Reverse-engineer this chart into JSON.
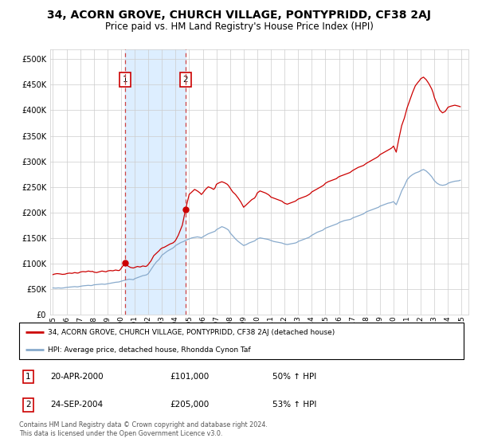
{
  "title": "34, ACORN GROVE, CHURCH VILLAGE, PONTYPRIDD, CF38 2AJ",
  "subtitle": "Price paid vs. HM Land Registry's House Price Index (HPI)",
  "title_fontsize": 10,
  "subtitle_fontsize": 8.5,
  "ylabel_ticks": [
    "£0",
    "£50K",
    "£100K",
    "£150K",
    "£200K",
    "£250K",
    "£300K",
    "£350K",
    "£400K",
    "£450K",
    "£500K"
  ],
  "ytick_values": [
    0,
    50000,
    100000,
    150000,
    200000,
    250000,
    300000,
    350000,
    400000,
    450000,
    500000
  ],
  "ylim": [
    0,
    520000
  ],
  "xlim_start": 1994.8,
  "xlim_end": 2025.5,
  "sale1_date": 2000.3,
  "sale1_price": 101000,
  "sale1_label": "20-APR-2000",
  "sale1_hpi_pct": "50% ↑ HPI",
  "sale2_date": 2004.73,
  "sale2_price": 205000,
  "sale2_label": "24-SEP-2004",
  "sale2_hpi_pct": "53% ↑ HPI",
  "red_line_color": "#CC0000",
  "blue_line_color": "#88AACC",
  "shade_color": "#DDEEFF",
  "vline_color": "#CC4444",
  "marker_color": "#CC0000",
  "grid_color": "#CCCCCC",
  "legend_line1": "34, ACORN GROVE, CHURCH VILLAGE, PONTYPRIDD, CF38 2AJ (detached house)",
  "legend_line2": "HPI: Average price, detached house, Rhondda Cynon Taf",
  "footer": "Contains HM Land Registry data © Crown copyright and database right 2024.\nThis data is licensed under the Open Government Licence v3.0.",
  "box_edge_color": "#CC0000",
  "xtick_years": [
    "1995",
    "1996",
    "1997",
    "1998",
    "1999",
    "2000",
    "2001",
    "2002",
    "2003",
    "2004",
    "2005",
    "2006",
    "2007",
    "2008",
    "2009",
    "2010",
    "2011",
    "2012",
    "2013",
    "2014",
    "2015",
    "2016",
    "2017",
    "2018",
    "2019",
    "2020",
    "2021",
    "2022",
    "2023",
    "2024",
    "2025"
  ],
  "hpi_red_data": [
    [
      1995.0,
      78000
    ],
    [
      1995.1,
      79000
    ],
    [
      1995.3,
      80000
    ],
    [
      1995.5,
      79500
    ],
    [
      1995.7,
      78500
    ],
    [
      1995.9,
      79000
    ],
    [
      1996.0,
      80000
    ],
    [
      1996.2,
      81000
    ],
    [
      1996.4,
      80500
    ],
    [
      1996.6,
      82000
    ],
    [
      1996.8,
      81000
    ],
    [
      1996.9,
      81500
    ],
    [
      1997.0,
      83000
    ],
    [
      1997.2,
      84000
    ],
    [
      1997.4,
      83500
    ],
    [
      1997.6,
      85000
    ],
    [
      1997.8,
      84000
    ],
    [
      1997.9,
      84500
    ],
    [
      1998.0,
      83000
    ],
    [
      1998.2,
      82000
    ],
    [
      1998.4,
      83500
    ],
    [
      1998.6,
      85000
    ],
    [
      1998.8,
      84000
    ],
    [
      1998.9,
      83500
    ],
    [
      1999.0,
      85000
    ],
    [
      1999.2,
      86000
    ],
    [
      1999.4,
      85500
    ],
    [
      1999.6,
      87000
    ],
    [
      1999.8,
      86000
    ],
    [
      1999.9,
      86500
    ],
    [
      2000.0,
      90000
    ],
    [
      2000.3,
      101000
    ],
    [
      2000.5,
      95000
    ],
    [
      2000.7,
      92000
    ],
    [
      2000.9,
      91000
    ],
    [
      2001.0,
      92000
    ],
    [
      2001.2,
      94000
    ],
    [
      2001.4,
      93000
    ],
    [
      2001.6,
      95000
    ],
    [
      2001.8,
      94000
    ],
    [
      2001.9,
      95000
    ],
    [
      2002.0,
      98000
    ],
    [
      2002.2,
      105000
    ],
    [
      2002.4,
      115000
    ],
    [
      2002.6,
      120000
    ],
    [
      2002.8,
      125000
    ],
    [
      2002.9,
      128000
    ],
    [
      2003.0,
      130000
    ],
    [
      2003.2,
      132000
    ],
    [
      2003.4,
      135000
    ],
    [
      2003.6,
      138000
    ],
    [
      2003.8,
      140000
    ],
    [
      2003.9,
      142000
    ],
    [
      2004.0,
      145000
    ],
    [
      2004.2,
      155000
    ],
    [
      2004.5,
      175000
    ],
    [
      2004.73,
      205000
    ],
    [
      2005.0,
      235000
    ],
    [
      2005.2,
      240000
    ],
    [
      2005.4,
      245000
    ],
    [
      2005.6,
      242000
    ],
    [
      2005.8,
      238000
    ],
    [
      2005.9,
      235000
    ],
    [
      2006.0,
      238000
    ],
    [
      2006.2,
      245000
    ],
    [
      2006.4,
      250000
    ],
    [
      2006.6,
      248000
    ],
    [
      2006.8,
      245000
    ],
    [
      2006.9,
      248000
    ],
    [
      2007.0,
      255000
    ],
    [
      2007.2,
      258000
    ],
    [
      2007.4,
      260000
    ],
    [
      2007.6,
      258000
    ],
    [
      2007.8,
      255000
    ],
    [
      2007.9,
      252000
    ],
    [
      2008.0,
      248000
    ],
    [
      2008.2,
      240000
    ],
    [
      2008.4,
      235000
    ],
    [
      2008.6,
      228000
    ],
    [
      2008.8,
      220000
    ],
    [
      2008.9,
      215000
    ],
    [
      2009.0,
      210000
    ],
    [
      2009.2,
      215000
    ],
    [
      2009.4,
      220000
    ],
    [
      2009.6,
      225000
    ],
    [
      2009.8,
      228000
    ],
    [
      2009.9,
      232000
    ],
    [
      2010.0,
      238000
    ],
    [
      2010.2,
      242000
    ],
    [
      2010.4,
      240000
    ],
    [
      2010.6,
      238000
    ],
    [
      2010.8,
      235000
    ],
    [
      2010.9,
      233000
    ],
    [
      2011.0,
      230000
    ],
    [
      2011.2,
      228000
    ],
    [
      2011.4,
      226000
    ],
    [
      2011.6,
      224000
    ],
    [
      2011.8,
      222000
    ],
    [
      2011.9,
      220000
    ],
    [
      2012.0,
      218000
    ],
    [
      2012.2,
      216000
    ],
    [
      2012.4,
      218000
    ],
    [
      2012.6,
      220000
    ],
    [
      2012.8,
      222000
    ],
    [
      2012.9,
      224000
    ],
    [
      2013.0,
      226000
    ],
    [
      2013.2,
      228000
    ],
    [
      2013.4,
      230000
    ],
    [
      2013.6,
      232000
    ],
    [
      2013.8,
      235000
    ],
    [
      2013.9,
      237000
    ],
    [
      2014.0,
      240000
    ],
    [
      2014.2,
      243000
    ],
    [
      2014.4,
      246000
    ],
    [
      2014.6,
      249000
    ],
    [
      2014.8,
      252000
    ],
    [
      2014.9,
      254000
    ],
    [
      2015.0,
      257000
    ],
    [
      2015.2,
      260000
    ],
    [
      2015.4,
      262000
    ],
    [
      2015.6,
      264000
    ],
    [
      2015.8,
      266000
    ],
    [
      2015.9,
      268000
    ],
    [
      2016.0,
      270000
    ],
    [
      2016.2,
      272000
    ],
    [
      2016.4,
      274000
    ],
    [
      2016.6,
      276000
    ],
    [
      2016.8,
      278000
    ],
    [
      2016.9,
      280000
    ],
    [
      2017.0,
      282000
    ],
    [
      2017.2,
      285000
    ],
    [
      2017.4,
      288000
    ],
    [
      2017.6,
      290000
    ],
    [
      2017.8,
      292000
    ],
    [
      2017.9,
      294000
    ],
    [
      2018.0,
      296000
    ],
    [
      2018.2,
      299000
    ],
    [
      2018.4,
      302000
    ],
    [
      2018.6,
      305000
    ],
    [
      2018.8,
      308000
    ],
    [
      2018.9,
      310000
    ],
    [
      2019.0,
      313000
    ],
    [
      2019.2,
      316000
    ],
    [
      2019.4,
      319000
    ],
    [
      2019.6,
      322000
    ],
    [
      2019.8,
      325000
    ],
    [
      2019.9,
      327000
    ],
    [
      2020.0,
      330000
    ],
    [
      2020.2,
      318000
    ],
    [
      2020.4,
      345000
    ],
    [
      2020.6,
      370000
    ],
    [
      2020.8,
      385000
    ],
    [
      2020.9,
      395000
    ],
    [
      2021.0,
      405000
    ],
    [
      2021.2,
      420000
    ],
    [
      2021.4,
      435000
    ],
    [
      2021.6,
      448000
    ],
    [
      2021.8,
      455000
    ],
    [
      2021.9,
      458000
    ],
    [
      2022.0,
      462000
    ],
    [
      2022.2,
      465000
    ],
    [
      2022.4,
      460000
    ],
    [
      2022.6,
      452000
    ],
    [
      2022.8,
      442000
    ],
    [
      2022.9,
      435000
    ],
    [
      2023.0,
      425000
    ],
    [
      2023.2,
      412000
    ],
    [
      2023.4,
      400000
    ],
    [
      2023.6,
      395000
    ],
    [
      2023.8,
      398000
    ],
    [
      2023.9,
      402000
    ],
    [
      2024.0,
      406000
    ],
    [
      2024.2,
      408000
    ],
    [
      2024.5,
      410000
    ],
    [
      2024.8,
      408000
    ],
    [
      2024.9,
      407000
    ]
  ],
  "hpi_blue_data": [
    [
      1995.0,
      52000
    ],
    [
      1995.2,
      51500
    ],
    [
      1995.4,
      52000
    ],
    [
      1995.6,
      51500
    ],
    [
      1995.8,
      52000
    ],
    [
      1995.9,
      52500
    ],
    [
      1996.0,
      53000
    ],
    [
      1996.2,
      53500
    ],
    [
      1996.4,
      54000
    ],
    [
      1996.6,
      54500
    ],
    [
      1996.8,
      54000
    ],
    [
      1996.9,
      54500
    ],
    [
      1997.0,
      55000
    ],
    [
      1997.2,
      56000
    ],
    [
      1997.4,
      56500
    ],
    [
      1997.6,
      57000
    ],
    [
      1997.8,
      56500
    ],
    [
      1997.9,
      57000
    ],
    [
      1998.0,
      58000
    ],
    [
      1998.2,
      58500
    ],
    [
      1998.4,
      59000
    ],
    [
      1998.6,
      59500
    ],
    [
      1998.8,
      59000
    ],
    [
      1998.9,
      59500
    ],
    [
      1999.0,
      60000
    ],
    [
      1999.2,
      61000
    ],
    [
      1999.4,
      62000
    ],
    [
      1999.6,
      63000
    ],
    [
      1999.8,
      63500
    ],
    [
      1999.9,
      64000
    ],
    [
      2000.0,
      65000
    ],
    [
      2000.2,
      66500
    ],
    [
      2000.4,
      68000
    ],
    [
      2000.6,
      69000
    ],
    [
      2000.8,
      68500
    ],
    [
      2000.9,
      68000
    ],
    [
      2001.0,
      70000
    ],
    [
      2001.2,
      72000
    ],
    [
      2001.4,
      74000
    ],
    [
      2001.6,
      76000
    ],
    [
      2001.8,
      77000
    ],
    [
      2001.9,
      78000
    ],
    [
      2002.0,
      80000
    ],
    [
      2002.2,
      88000
    ],
    [
      2002.4,
      96000
    ],
    [
      2002.6,
      103000
    ],
    [
      2002.8,
      108000
    ],
    [
      2002.9,
      112000
    ],
    [
      2003.0,
      116000
    ],
    [
      2003.2,
      120000
    ],
    [
      2003.4,
      124000
    ],
    [
      2003.6,
      127000
    ],
    [
      2003.8,
      130000
    ],
    [
      2003.9,
      132000
    ],
    [
      2004.0,
      135000
    ],
    [
      2004.2,
      138000
    ],
    [
      2004.4,
      141000
    ],
    [
      2004.6,
      143000
    ],
    [
      2004.73,
      145000
    ],
    [
      2005.0,
      148000
    ],
    [
      2005.2,
      150000
    ],
    [
      2005.4,
      151000
    ],
    [
      2005.6,
      152000
    ],
    [
      2005.8,
      151000
    ],
    [
      2005.9,
      150000
    ],
    [
      2006.0,
      152000
    ],
    [
      2006.2,
      155000
    ],
    [
      2006.4,
      158000
    ],
    [
      2006.6,
      160000
    ],
    [
      2006.8,
      162000
    ],
    [
      2006.9,
      163000
    ],
    [
      2007.0,
      166000
    ],
    [
      2007.2,
      169000
    ],
    [
      2007.4,
      172000
    ],
    [
      2007.6,
      170000
    ],
    [
      2007.8,
      167000
    ],
    [
      2007.9,
      165000
    ],
    [
      2008.0,
      160000
    ],
    [
      2008.2,
      154000
    ],
    [
      2008.4,
      148000
    ],
    [
      2008.6,
      143000
    ],
    [
      2008.8,
      139000
    ],
    [
      2008.9,
      137000
    ],
    [
      2009.0,
      135000
    ],
    [
      2009.2,
      137000
    ],
    [
      2009.4,
      140000
    ],
    [
      2009.6,
      142000
    ],
    [
      2009.8,
      144000
    ],
    [
      2009.9,
      146000
    ],
    [
      2010.0,
      148000
    ],
    [
      2010.2,
      150000
    ],
    [
      2010.4,
      149000
    ],
    [
      2010.6,
      148000
    ],
    [
      2010.8,
      147000
    ],
    [
      2010.9,
      146000
    ],
    [
      2011.0,
      145000
    ],
    [
      2011.2,
      143000
    ],
    [
      2011.4,
      142000
    ],
    [
      2011.6,
      141000
    ],
    [
      2011.8,
      140000
    ],
    [
      2011.9,
      139000
    ],
    [
      2012.0,
      138000
    ],
    [
      2012.2,
      137000
    ],
    [
      2012.4,
      138000
    ],
    [
      2012.6,
      139000
    ],
    [
      2012.8,
      140000
    ],
    [
      2012.9,
      141000
    ],
    [
      2013.0,
      143000
    ],
    [
      2013.2,
      145000
    ],
    [
      2013.4,
      147000
    ],
    [
      2013.6,
      149000
    ],
    [
      2013.8,
      151000
    ],
    [
      2013.9,
      153000
    ],
    [
      2014.0,
      155000
    ],
    [
      2014.2,
      158000
    ],
    [
      2014.4,
      161000
    ],
    [
      2014.6,
      163000
    ],
    [
      2014.8,
      165000
    ],
    [
      2014.9,
      167000
    ],
    [
      2015.0,
      169000
    ],
    [
      2015.2,
      171000
    ],
    [
      2015.4,
      173000
    ],
    [
      2015.6,
      175000
    ],
    [
      2015.8,
      177000
    ],
    [
      2015.9,
      178000
    ],
    [
      2016.0,
      180000
    ],
    [
      2016.2,
      182000
    ],
    [
      2016.4,
      184000
    ],
    [
      2016.6,
      185000
    ],
    [
      2016.8,
      186000
    ],
    [
      2016.9,
      187000
    ],
    [
      2017.0,
      189000
    ],
    [
      2017.2,
      191000
    ],
    [
      2017.4,
      193000
    ],
    [
      2017.6,
      195000
    ],
    [
      2017.8,
      197000
    ],
    [
      2017.9,
      199000
    ],
    [
      2018.0,
      201000
    ],
    [
      2018.2,
      203000
    ],
    [
      2018.4,
      205000
    ],
    [
      2018.6,
      207000
    ],
    [
      2018.8,
      209000
    ],
    [
      2018.9,
      210000
    ],
    [
      2019.0,
      212000
    ],
    [
      2019.2,
      214000
    ],
    [
      2019.4,
      216000
    ],
    [
      2019.6,
      218000
    ],
    [
      2019.8,
      219000
    ],
    [
      2019.9,
      220000
    ],
    [
      2020.0,
      221000
    ],
    [
      2020.2,
      215000
    ],
    [
      2020.4,
      228000
    ],
    [
      2020.6,
      242000
    ],
    [
      2020.8,
      252000
    ],
    [
      2020.9,
      258000
    ],
    [
      2021.0,
      264000
    ],
    [
      2021.2,
      270000
    ],
    [
      2021.4,
      274000
    ],
    [
      2021.6,
      277000
    ],
    [
      2021.8,
      279000
    ],
    [
      2021.9,
      280000
    ],
    [
      2022.0,
      282000
    ],
    [
      2022.2,
      284000
    ],
    [
      2022.4,
      281000
    ],
    [
      2022.6,
      276000
    ],
    [
      2022.8,
      270000
    ],
    [
      2022.9,
      266000
    ],
    [
      2023.0,
      262000
    ],
    [
      2023.2,
      257000
    ],
    [
      2023.4,
      254000
    ],
    [
      2023.6,
      253000
    ],
    [
      2023.8,
      254000
    ],
    [
      2023.9,
      255000
    ],
    [
      2024.0,
      257000
    ],
    [
      2024.2,
      259000
    ],
    [
      2024.5,
      261000
    ],
    [
      2024.8,
      262000
    ],
    [
      2024.9,
      263000
    ]
  ]
}
